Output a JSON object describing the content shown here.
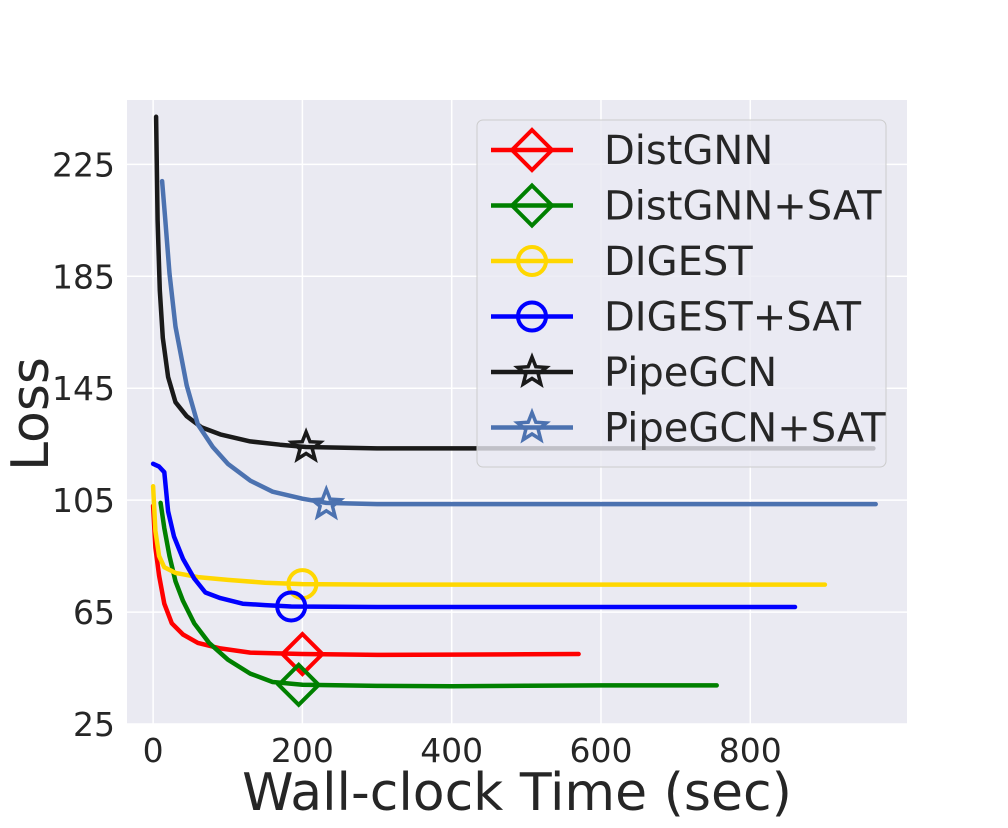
{
  "chart_data": {
    "type": "line",
    "title": "",
    "xlabel": "Wall-clock Time (sec)",
    "ylabel": "Loss",
    "xlim": [
      -35,
      1010
    ],
    "ylim": [
      25,
      248
    ],
    "xticks": [
      0,
      200,
      400,
      600,
      800
    ],
    "yticks": [
      25,
      65,
      105,
      145,
      185,
      225
    ],
    "grid": true,
    "legend_position": "top-right",
    "colors": {
      "plot_background": "#eaeaf2",
      "grid": "#ffffff"
    },
    "series": [
      {
        "name": "DistGNN",
        "color": "#ff0000",
        "marker": "diamond",
        "marker_point": [
          200,
          50
        ],
        "points": [
          [
            0,
            103
          ],
          [
            3,
            88
          ],
          [
            8,
            78
          ],
          [
            15,
            68
          ],
          [
            25,
            61
          ],
          [
            40,
            57
          ],
          [
            60,
            54
          ],
          [
            90,
            52
          ],
          [
            130,
            50.5
          ],
          [
            200,
            50
          ],
          [
            300,
            49.7
          ],
          [
            400,
            49.8
          ],
          [
            500,
            49.9
          ],
          [
            570,
            50
          ]
        ]
      },
      {
        "name": "DistGNN+SAT",
        "color": "#008000",
        "marker": "diamond",
        "marker_point": [
          195,
          39
        ],
        "points": [
          [
            10,
            104
          ],
          [
            15,
            95
          ],
          [
            22,
            85
          ],
          [
            30,
            76
          ],
          [
            40,
            69
          ],
          [
            55,
            61
          ],
          [
            75,
            54
          ],
          [
            100,
            48
          ],
          [
            130,
            43
          ],
          [
            160,
            40
          ],
          [
            200,
            39
          ],
          [
            300,
            38.6
          ],
          [
            400,
            38.5
          ],
          [
            500,
            38.7
          ],
          [
            600,
            38.8
          ],
          [
            755,
            38.8
          ]
        ]
      },
      {
        "name": "DIGEST",
        "color": "#ffd700",
        "marker": "circle",
        "marker_point": [
          200,
          75
        ],
        "points": [
          [
            0,
            110
          ],
          [
            3,
            94
          ],
          [
            8,
            85
          ],
          [
            15,
            81
          ],
          [
            30,
            79
          ],
          [
            60,
            77.5
          ],
          [
            100,
            76.5
          ],
          [
            150,
            75.5
          ],
          [
            200,
            75
          ],
          [
            300,
            74.8
          ],
          [
            500,
            74.8
          ],
          [
            700,
            74.8
          ],
          [
            900,
            74.8
          ]
        ]
      },
      {
        "name": "DIGEST+SAT",
        "color": "#0000ff",
        "marker": "circle",
        "marker_point": [
          185,
          67
        ],
        "points": [
          [
            0,
            118
          ],
          [
            8,
            117
          ],
          [
            15,
            115
          ],
          [
            20,
            101
          ],
          [
            28,
            92
          ],
          [
            40,
            84
          ],
          [
            55,
            77
          ],
          [
            70,
            72
          ],
          [
            90,
            70
          ],
          [
            120,
            68
          ],
          [
            150,
            67.5
          ],
          [
            185,
            67
          ],
          [
            300,
            66.8
          ],
          [
            500,
            66.8
          ],
          [
            700,
            66.8
          ],
          [
            860,
            66.8
          ]
        ]
      },
      {
        "name": "PipeGCN",
        "color": "#1a1a1a",
        "marker": "star",
        "marker_point": [
          205,
          124
        ],
        "points": [
          [
            4,
            242
          ],
          [
            6,
            205
          ],
          [
            9,
            180
          ],
          [
            13,
            163
          ],
          [
            20,
            149
          ],
          [
            30,
            140
          ],
          [
            45,
            135
          ],
          [
            65,
            131
          ],
          [
            90,
            128.5
          ],
          [
            130,
            126
          ],
          [
            170,
            124.8
          ],
          [
            205,
            124
          ],
          [
            300,
            123.5
          ],
          [
            400,
            123.5
          ],
          [
            500,
            123.5
          ],
          [
            700,
            123.5
          ],
          [
            965,
            123.5
          ]
        ]
      },
      {
        "name": "PipeGCN+SAT",
        "color": "#4c72b0",
        "marker": "star",
        "marker_point": [
          232,
          103.5
        ],
        "points": [
          [
            12,
            219
          ],
          [
            16,
            206
          ],
          [
            22,
            186
          ],
          [
            30,
            167
          ],
          [
            45,
            146
          ],
          [
            60,
            132
          ],
          [
            80,
            124
          ],
          [
            100,
            118
          ],
          [
            130,
            112
          ],
          [
            160,
            108
          ],
          [
            200,
            105.5
          ],
          [
            232,
            104
          ],
          [
            300,
            103.6
          ],
          [
            500,
            103.6
          ],
          [
            700,
            103.6
          ],
          [
            968,
            103.6
          ]
        ]
      }
    ]
  }
}
